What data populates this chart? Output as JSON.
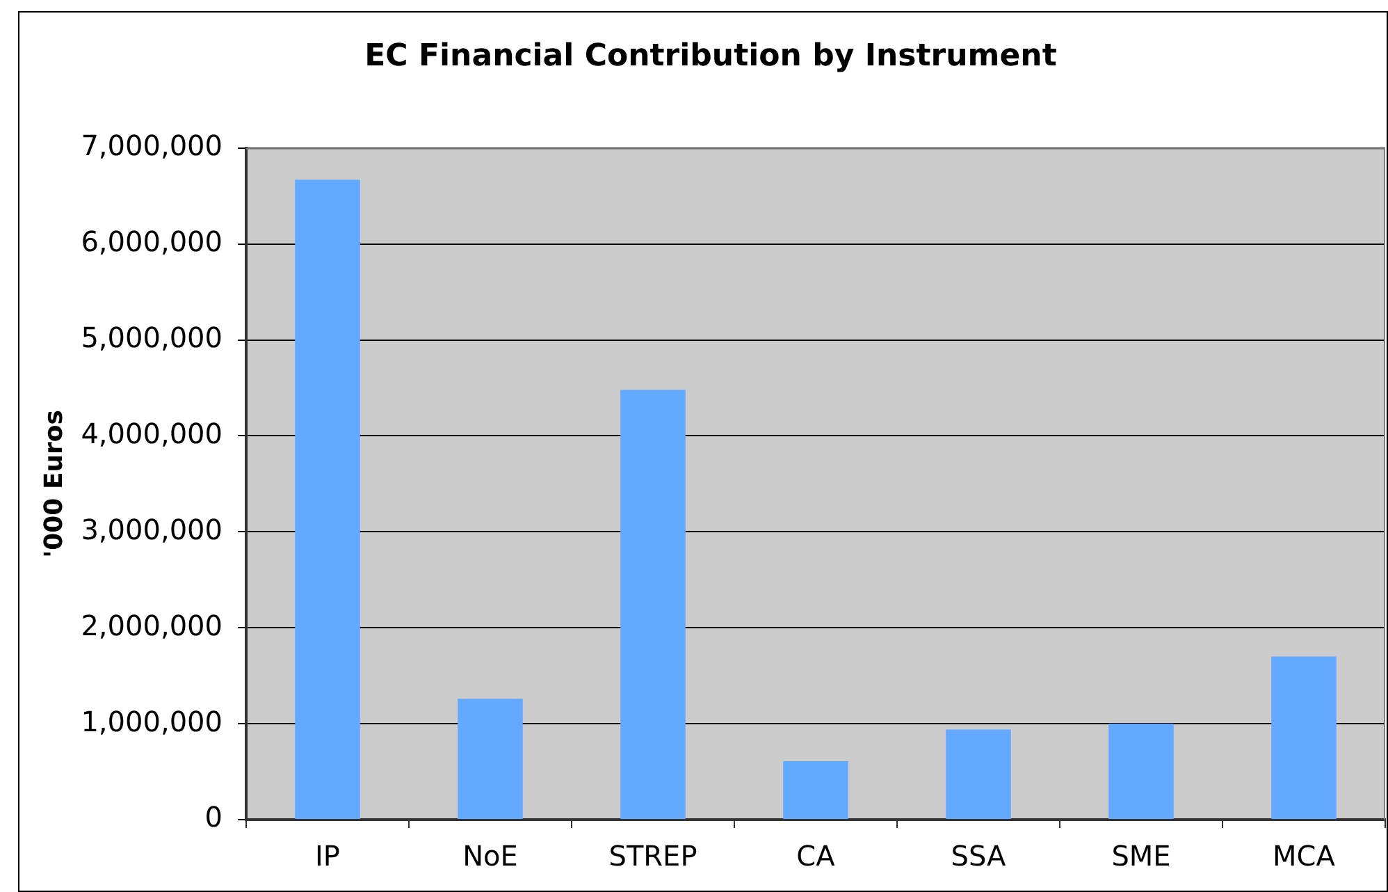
{
  "chart_data": {
    "type": "bar",
    "title": "EC Financial Contribution by Instrument",
    "ylabel": "'000 Euros",
    "categories": [
      "IP",
      "NoE",
      "STREP",
      "CA",
      "SSA",
      "SME",
      "MCA"
    ],
    "values": [
      6670000,
      1260000,
      4480000,
      610000,
      940000,
      1000000,
      1700000
    ],
    "color": "#63a9ff",
    "ylim": [
      0,
      7000000
    ],
    "yticks": [
      {
        "value": 0,
        "label": "0"
      },
      {
        "value": 1000000,
        "label": "1,000,000"
      },
      {
        "value": 2000000,
        "label": "2,000,000"
      },
      {
        "value": 3000000,
        "label": "3,000,000"
      },
      {
        "value": 4000000,
        "label": "4,000,000"
      },
      {
        "value": 5000000,
        "label": "5,000,000"
      },
      {
        "value": 6000000,
        "label": "6,000,000"
      },
      {
        "value": 7000000,
        "label": "7,000,000"
      }
    ],
    "grid": "y",
    "legend": false
  }
}
